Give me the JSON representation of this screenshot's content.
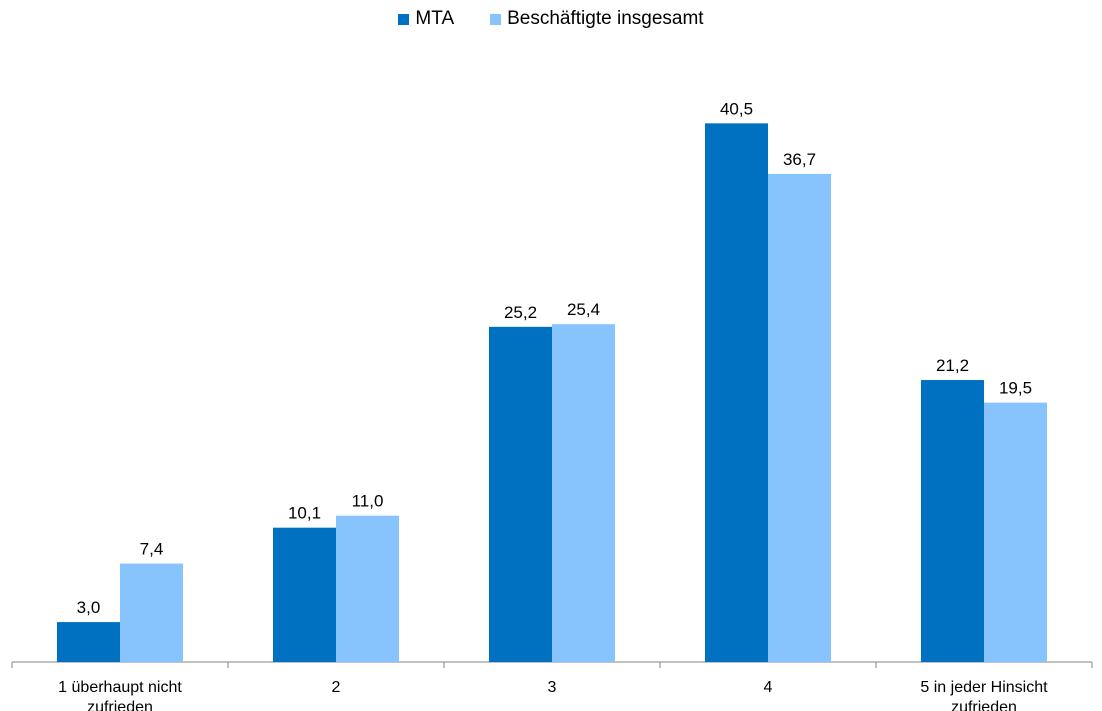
{
  "chart_data": {
    "type": "bar",
    "categories": [
      "1 überhaupt nicht zufrieden",
      "2",
      "3",
      "4",
      "5 in jeder Hinsicht zufrieden"
    ],
    "category_lines": [
      [
        "1 überhaupt nicht",
        "zufrieden"
      ],
      [
        "2"
      ],
      [
        "3"
      ],
      [
        "4"
      ],
      [
        "5 in jeder Hinsicht",
        "zufrieden"
      ]
    ],
    "series": [
      {
        "name": "MTA",
        "values": [
          3.0,
          10.1,
          25.2,
          40.5,
          21.2
        ],
        "labels": [
          "3,0",
          "10,1",
          "25,2",
          "40,5",
          "21,2"
        ],
        "color": "#0070C0"
      },
      {
        "name": "Beschäftigte insgesamt",
        "values": [
          7.4,
          11.0,
          25.4,
          36.7,
          19.5
        ],
        "labels": [
          "7,4",
          "11,0",
          "25,4",
          "36,7",
          "19,5"
        ],
        "color": "#87C3FD"
      }
    ],
    "ylim": [
      0,
      44
    ],
    "legend_position": "top",
    "grid": false,
    "title": "",
    "xlabel": "",
    "ylabel": ""
  }
}
